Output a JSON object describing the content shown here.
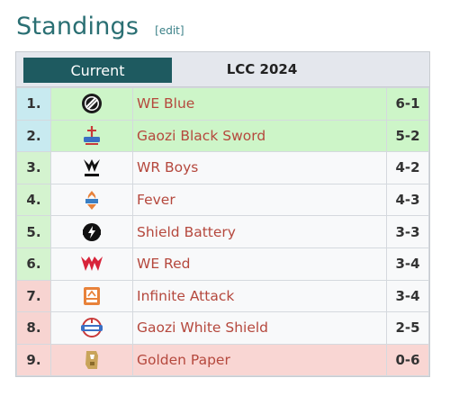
{
  "heading": {
    "title": "Standings",
    "edit_label": "[edit]"
  },
  "tabs": {
    "current_label": "Current",
    "season_label": "LCC 2024"
  },
  "rows": [
    {
      "rank": "1.",
      "team": "WE Blue",
      "record": "6-1",
      "logo": "we-blue-logo"
    },
    {
      "rank": "2.",
      "team": "Gaozi Black Sword",
      "record": "5-2",
      "logo": "gaozi-black-sword-logo"
    },
    {
      "rank": "3.",
      "team": "WR Boys",
      "record": "4-2",
      "logo": "wr-boys-logo"
    },
    {
      "rank": "4.",
      "team": "Fever",
      "record": "4-3",
      "logo": "fever-logo"
    },
    {
      "rank": "5.",
      "team": "Shield Battery",
      "record": "3-3",
      "logo": "shield-battery-logo"
    },
    {
      "rank": "6.",
      "team": "WE Red",
      "record": "3-4",
      "logo": "we-red-logo"
    },
    {
      "rank": "7.",
      "team": "Infinite Attack",
      "record": "3-4",
      "logo": "infinite-attack-logo"
    },
    {
      "rank": "8.",
      "team": "Gaozi White Shield",
      "record": "2-5",
      "logo": "gaozi-white-shield-logo"
    },
    {
      "rank": "9.",
      "team": "Golden Paper",
      "record": "0-6",
      "logo": "golden-paper-logo"
    }
  ],
  "colors": {
    "heading": "#2a6f73",
    "team_link": "#b5483d",
    "tab_active": "#1e5a60",
    "qualify_bg": "#cdf5c8",
    "eliminated_bg": "#f9d6d3"
  }
}
